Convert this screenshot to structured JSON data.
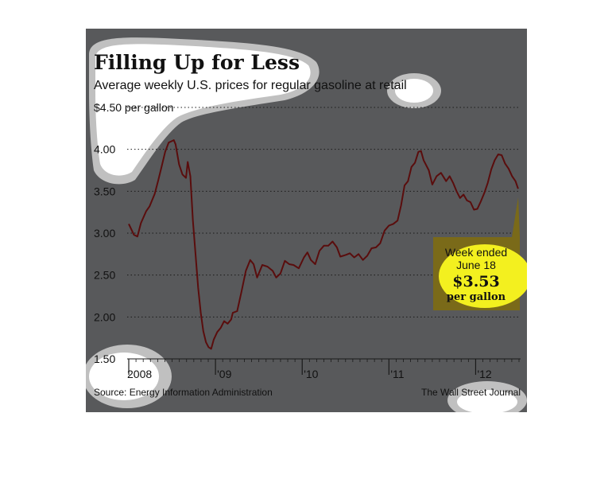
{
  "chart_data": {
    "type": "line",
    "title": "Filling Up for Less",
    "subtitle": "Average weekly U.S. prices for regular gasoline at retail",
    "y_unit_label": "per gallon",
    "y_ticks": [
      "$4.50",
      "4.00",
      "3.50",
      "3.00",
      "2.50",
      "2.00",
      "1.50"
    ],
    "y_tick_values": [
      4.5,
      4.0,
      3.5,
      3.0,
      2.5,
      2.0,
      1.5
    ],
    "ylim": [
      1.5,
      4.5
    ],
    "x_ticks": [
      "2008",
      "'09",
      "'10",
      "'11",
      "'12"
    ],
    "x_tick_values": [
      2008.0,
      2009.0,
      2010.0,
      2011.0,
      2012.0
    ],
    "xlim": [
      2008.0,
      2012.5
    ],
    "grid": "horizontal dotted",
    "series": [
      {
        "color": "#5a0d0d",
        "points": [
          [
            2008.0,
            3.11
          ],
          [
            2008.06,
            2.98
          ],
          [
            2008.1,
            2.96
          ],
          [
            2008.14,
            3.12
          ],
          [
            2008.2,
            3.26
          ],
          [
            2008.24,
            3.32
          ],
          [
            2008.3,
            3.47
          ],
          [
            2008.34,
            3.63
          ],
          [
            2008.38,
            3.8
          ],
          [
            2008.42,
            3.97
          ],
          [
            2008.46,
            4.08
          ],
          [
            2008.5,
            4.1
          ],
          [
            2008.52,
            4.11
          ],
          [
            2008.54,
            4.06
          ],
          [
            2008.58,
            3.82
          ],
          [
            2008.62,
            3.7
          ],
          [
            2008.66,
            3.66
          ],
          [
            2008.68,
            3.85
          ],
          [
            2008.71,
            3.68
          ],
          [
            2008.74,
            3.15
          ],
          [
            2008.77,
            2.75
          ],
          [
            2008.8,
            2.35
          ],
          [
            2008.83,
            2.05
          ],
          [
            2008.86,
            1.83
          ],
          [
            2008.89,
            1.7
          ],
          [
            2008.92,
            1.64
          ],
          [
            2008.95,
            1.62
          ],
          [
            2008.98,
            1.73
          ],
          [
            2009.02,
            1.82
          ],
          [
            2009.06,
            1.87
          ],
          [
            2009.1,
            1.95
          ],
          [
            2009.14,
            1.92
          ],
          [
            2009.18,
            1.97
          ],
          [
            2009.2,
            2.05
          ],
          [
            2009.25,
            2.07
          ],
          [
            2009.3,
            2.3
          ],
          [
            2009.35,
            2.55
          ],
          [
            2009.4,
            2.68
          ],
          [
            2009.44,
            2.63
          ],
          [
            2009.48,
            2.47
          ],
          [
            2009.54,
            2.62
          ],
          [
            2009.6,
            2.6
          ],
          [
            2009.66,
            2.55
          ],
          [
            2009.7,
            2.47
          ],
          [
            2009.75,
            2.52
          ],
          [
            2009.8,
            2.67
          ],
          [
            2009.85,
            2.63
          ],
          [
            2009.9,
            2.62
          ],
          [
            2009.96,
            2.58
          ],
          [
            2010.02,
            2.71
          ],
          [
            2010.06,
            2.77
          ],
          [
            2010.1,
            2.68
          ],
          [
            2010.15,
            2.63
          ],
          [
            2010.2,
            2.79
          ],
          [
            2010.25,
            2.85
          ],
          [
            2010.3,
            2.85
          ],
          [
            2010.35,
            2.9
          ],
          [
            2010.4,
            2.83
          ],
          [
            2010.44,
            2.72
          ],
          [
            2010.5,
            2.74
          ],
          [
            2010.55,
            2.76
          ],
          [
            2010.6,
            2.71
          ],
          [
            2010.65,
            2.75
          ],
          [
            2010.7,
            2.68
          ],
          [
            2010.75,
            2.73
          ],
          [
            2010.8,
            2.82
          ],
          [
            2010.85,
            2.83
          ],
          [
            2010.9,
            2.88
          ],
          [
            2010.95,
            3.03
          ],
          [
            2011.0,
            3.09
          ],
          [
            2011.05,
            3.11
          ],
          [
            2011.1,
            3.15
          ],
          [
            2011.14,
            3.33
          ],
          [
            2011.18,
            3.57
          ],
          [
            2011.22,
            3.62
          ],
          [
            2011.26,
            3.79
          ],
          [
            2011.3,
            3.84
          ],
          [
            2011.34,
            3.97
          ],
          [
            2011.37,
            3.98
          ],
          [
            2011.4,
            3.87
          ],
          [
            2011.46,
            3.75
          ],
          [
            2011.5,
            3.58
          ],
          [
            2011.55,
            3.68
          ],
          [
            2011.6,
            3.72
          ],
          [
            2011.66,
            3.62
          ],
          [
            2011.7,
            3.68
          ],
          [
            2011.74,
            3.6
          ],
          [
            2011.78,
            3.5
          ],
          [
            2011.82,
            3.42
          ],
          [
            2011.86,
            3.46
          ],
          [
            2011.9,
            3.39
          ],
          [
            2011.94,
            3.37
          ],
          [
            2011.98,
            3.28
          ],
          [
            2012.02,
            3.29
          ],
          [
            2012.06,
            3.38
          ],
          [
            2012.1,
            3.48
          ],
          [
            2012.14,
            3.6
          ],
          [
            2012.18,
            3.76
          ],
          [
            2012.22,
            3.87
          ],
          [
            2012.26,
            3.94
          ],
          [
            2012.3,
            3.93
          ],
          [
            2012.34,
            3.83
          ],
          [
            2012.38,
            3.77
          ],
          [
            2012.42,
            3.68
          ],
          [
            2012.46,
            3.62
          ],
          [
            2012.49,
            3.53
          ]
        ]
      }
    ],
    "callout": {
      "line1": "Week ended",
      "line2": "June 18",
      "value": "$3.53",
      "unit": "per gallon"
    },
    "source": "Source: Energy Information Administration",
    "credit": "The Wall Street Journal"
  },
  "colors": {
    "panel": "#58595b",
    "line": "#5a0d0d",
    "highlight": "#f3f01f",
    "callout_box": "#7a6a19",
    "halo": "#ffffff",
    "halo_edge": "#c0c0c0"
  }
}
